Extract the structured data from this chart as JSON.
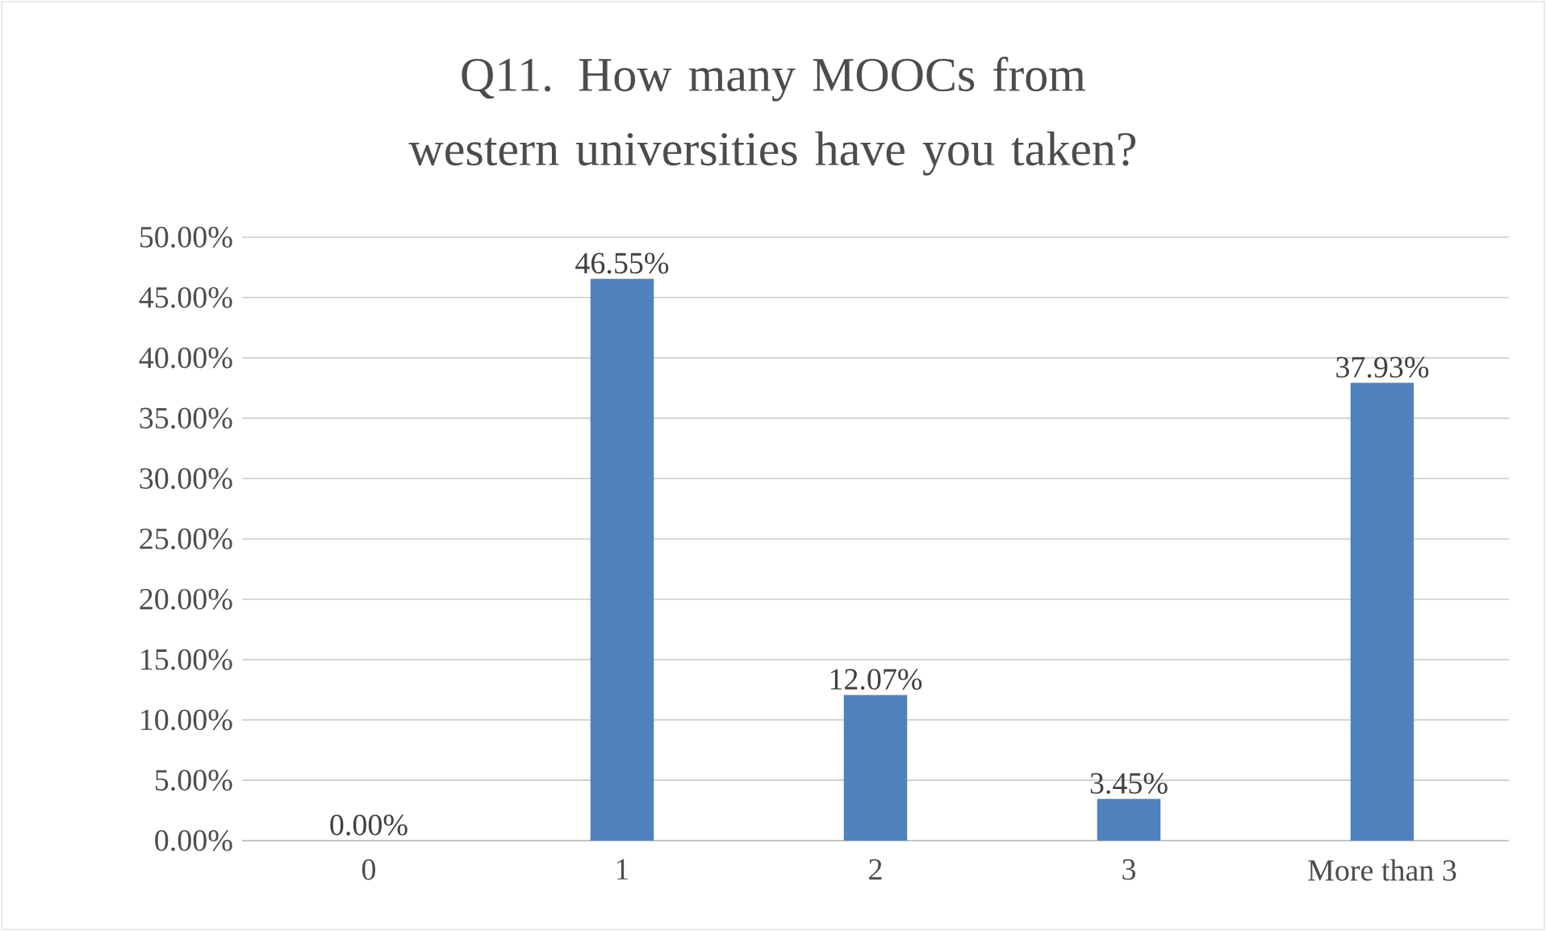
{
  "chart_data": {
    "type": "bar",
    "title": "Q11. How many MOOCs from western universities have you taken?",
    "categories": [
      "0",
      "1",
      "2",
      "3",
      "More than 3"
    ],
    "values": [
      0,
      46.55,
      12.07,
      3.45,
      37.93
    ],
    "value_labels": [
      "0.00%",
      "46.55%",
      "12.07%",
      "3.45%",
      "37.93%"
    ],
    "color": "#4f81bd",
    "ylim": [
      0,
      50
    ],
    "yticks": [
      {
        "value": 0,
        "label": "0.00%"
      },
      {
        "value": 5,
        "label": "5.00%"
      },
      {
        "value": 10,
        "label": "10.00%"
      },
      {
        "value": 15,
        "label": "15.00%"
      },
      {
        "value": 20,
        "label": "20.00%"
      },
      {
        "value": 25,
        "label": "25.00%"
      },
      {
        "value": 30,
        "label": "30.00%"
      },
      {
        "value": 35,
        "label": "35.00%"
      },
      {
        "value": 40,
        "label": "40.00%"
      },
      {
        "value": 45,
        "label": "45.00%"
      },
      {
        "value": 50,
        "label": "50.00%"
      }
    ],
    "grid": "y"
  }
}
